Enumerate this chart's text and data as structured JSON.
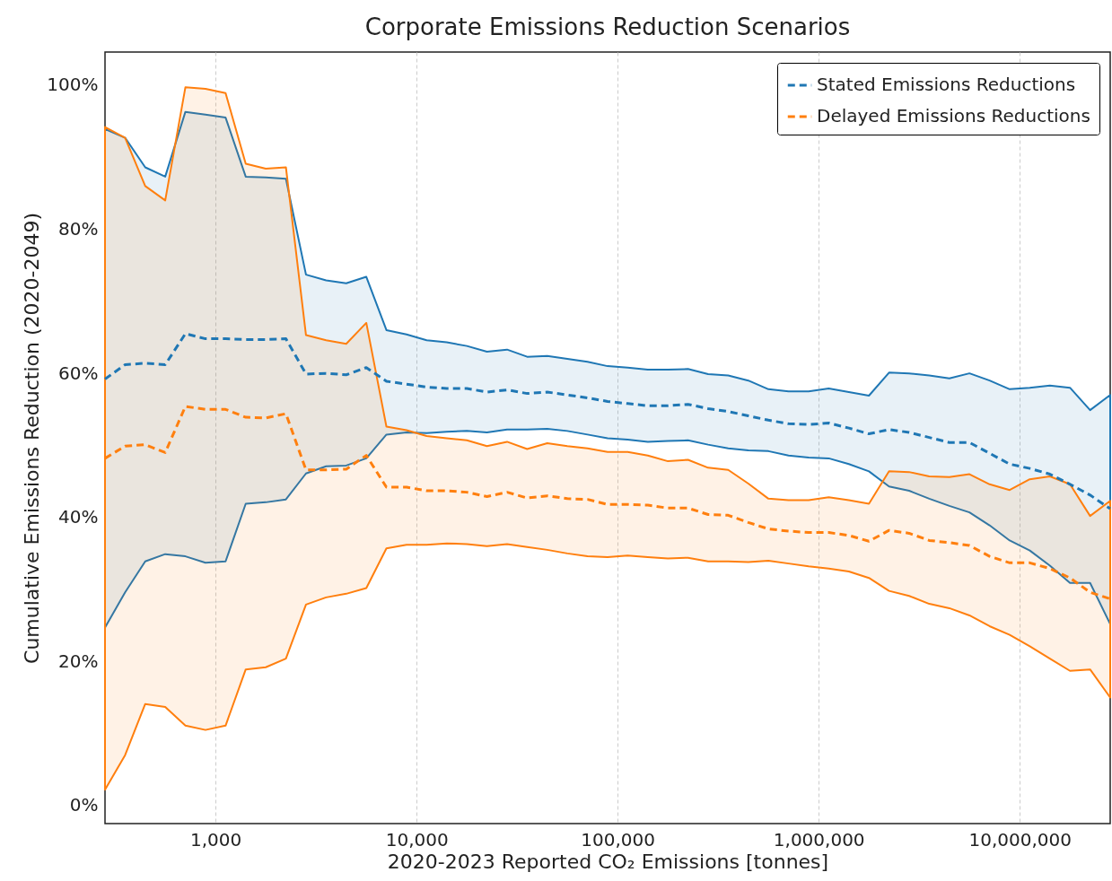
{
  "chart_data": {
    "type": "line",
    "title": "Corporate Emissions Reduction Scenarios",
    "xlabel": "2020-2023 Reported CO₂ Emissions [tonnes]",
    "ylabel": "Cumulative Emissions Reduction (2020-2049)",
    "x": [
      282,
      355,
      447,
      562,
      708,
      891,
      1122,
      1413,
      1778,
      2239,
      2818,
      3548,
      4467,
      5623,
      7079,
      8913,
      11220,
      14125,
      17783,
      22387,
      28184,
      35481,
      44668,
      56234,
      70795,
      89125,
      112202,
      141254,
      177828,
      223872,
      281838,
      354813,
      446684,
      562341,
      707946,
      891251,
      1122018,
      1412538,
      1778279,
      2238721,
      2818383,
      3548134,
      4466836,
      5623413,
      7079458,
      8912509,
      11220185,
      14125375,
      17782794,
      22387211,
      28183829
    ],
    "xlim": [
      282,
      28183829
    ],
    "xticks": [
      {
        "value": 1000,
        "label": "1,000"
      },
      {
        "value": 10000,
        "label": "10,000"
      },
      {
        "value": 100000,
        "label": "100,000"
      },
      {
        "value": 1000000,
        "label": "1,000,000"
      },
      {
        "value": 10000000,
        "label": "10,000,000"
      }
    ],
    "log": "x",
    "ylim": [
      -2.5,
      104.6
    ],
    "yticks": [
      {
        "value": 0,
        "label": "0%"
      },
      {
        "value": 20,
        "label": "20%"
      },
      {
        "value": 40,
        "label": "40%"
      },
      {
        "value": 60,
        "label": "60%"
      },
      {
        "value": 80,
        "label": "80%"
      },
      {
        "value": 100,
        "label": "100%"
      }
    ],
    "grid": "x",
    "legend": "top right",
    "line_style": "dashed",
    "series": [
      {
        "name": "Stated Emissions Reductions",
        "color": "#1f77b4",
        "values": [
          59.2,
          61.2,
          61.4,
          61.2,
          65.5,
          64.8,
          64.8,
          64.7,
          64.7,
          64.8,
          59.9,
          60.0,
          59.8,
          60.8,
          58.9,
          58.5,
          58.1,
          57.9,
          57.9,
          57.4,
          57.7,
          57.2,
          57.4,
          57.0,
          56.6,
          56.1,
          55.8,
          55.5,
          55.5,
          55.7,
          55.1,
          54.7,
          54.1,
          53.5,
          53.0,
          52.9,
          53.1,
          52.4,
          51.6,
          52.2,
          51.8,
          51.1,
          50.4,
          50.4,
          48.9,
          47.4,
          46.8,
          46.0,
          44.6,
          43.1,
          41.2
        ],
        "lower": [
          24.7,
          29.6,
          33.9,
          34.9,
          34.6,
          33.7,
          33.9,
          41.9,
          42.1,
          42.5,
          46.1,
          47.1,
          47.2,
          48.2,
          51.5,
          51.8,
          51.7,
          51.9,
          52.0,
          51.8,
          52.2,
          52.2,
          52.3,
          52.0,
          51.5,
          51.0,
          50.8,
          50.5,
          50.6,
          50.7,
          50.1,
          49.6,
          49.3,
          49.2,
          48.6,
          48.3,
          48.2,
          47.4,
          46.4,
          44.3,
          43.7,
          42.6,
          41.6,
          40.7,
          38.9,
          36.8,
          35.4,
          33.3,
          30.9,
          30.9,
          25.2
        ],
        "upper": [
          93.9,
          92.7,
          88.6,
          87.3,
          96.3,
          95.9,
          95.5,
          87.3,
          87.2,
          87.0,
          73.7,
          72.9,
          72.5,
          73.4,
          66.0,
          65.4,
          64.6,
          64.3,
          63.8,
          63.0,
          63.3,
          62.3,
          62.4,
          62.0,
          61.6,
          61.0,
          60.8,
          60.5,
          60.5,
          60.6,
          59.9,
          59.7,
          59.0,
          57.8,
          57.5,
          57.5,
          57.9,
          57.4,
          56.9,
          60.1,
          60.0,
          59.7,
          59.3,
          60.0,
          59.0,
          57.8,
          58.0,
          58.3,
          58.0,
          54.9,
          57.0
        ]
      },
      {
        "name": "Delayed Emissions Reductions",
        "color": "#ff7f0e",
        "values": [
          48.2,
          49.9,
          50.1,
          49.0,
          55.4,
          55.0,
          55.0,
          53.9,
          53.8,
          54.4,
          46.6,
          46.6,
          46.7,
          48.6,
          44.2,
          44.2,
          43.7,
          43.7,
          43.5,
          42.9,
          43.5,
          42.7,
          43.0,
          42.6,
          42.5,
          41.8,
          41.8,
          41.7,
          41.3,
          41.3,
          40.4,
          40.3,
          39.3,
          38.4,
          38.1,
          37.9,
          37.9,
          37.5,
          36.7,
          38.2,
          37.8,
          36.8,
          36.5,
          36.1,
          34.6,
          33.7,
          33.7,
          32.9,
          31.6,
          29.6,
          28.7
        ],
        "lower": [
          2.2,
          7.0,
          14.1,
          13.7,
          11.1,
          10.5,
          11.1,
          18.9,
          19.2,
          20.4,
          27.9,
          28.9,
          29.4,
          30.2,
          35.7,
          36.2,
          36.2,
          36.4,
          36.3,
          36.0,
          36.3,
          35.9,
          35.5,
          35.0,
          34.6,
          34.5,
          34.7,
          34.5,
          34.3,
          34.4,
          33.9,
          33.9,
          33.8,
          34.0,
          33.6,
          33.2,
          32.9,
          32.5,
          31.6,
          29.8,
          29.1,
          28.0,
          27.4,
          26.4,
          24.9,
          23.7,
          22.1,
          20.4,
          18.7,
          18.9,
          15.0
        ],
        "upper": [
          94.2,
          92.7,
          86.0,
          84.0,
          99.7,
          99.5,
          98.9,
          89.1,
          88.4,
          88.6,
          65.3,
          64.6,
          64.1,
          67.0,
          52.6,
          52.1,
          51.3,
          51.0,
          50.7,
          49.9,
          50.5,
          49.5,
          50.3,
          49.9,
          49.6,
          49.1,
          49.1,
          48.6,
          47.8,
          48.0,
          46.9,
          46.6,
          44.7,
          42.6,
          42.4,
          42.4,
          42.8,
          42.4,
          41.9,
          46.4,
          46.3,
          45.7,
          45.6,
          46.0,
          44.6,
          43.8,
          45.3,
          45.7,
          44.6,
          40.2,
          42.3
        ]
      }
    ]
  }
}
